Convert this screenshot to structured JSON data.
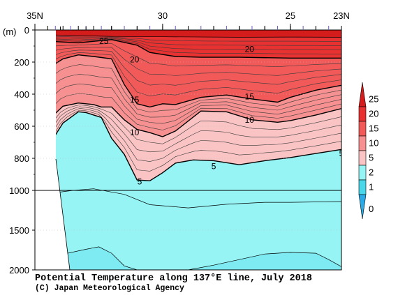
{
  "chart_data": {
    "type": "contour",
    "title": "Potential Temperature along 137°E line, July 2018",
    "credit": "(C) Japan Meteorological Agency",
    "ylabel": "(m)",
    "x_ticks": [
      "35N",
      "30",
      "25",
      "23N"
    ],
    "x_tick_lats": [
      35,
      30,
      25,
      23
    ],
    "xlim": [
      35,
      23
    ],
    "y_ticks": [
      "0",
      "200",
      "400",
      "600",
      "800",
      "1000",
      "1500",
      "2000"
    ],
    "y_tick_depths": [
      0,
      200,
      400,
      600,
      800,
      1000,
      1500,
      2000
    ],
    "ylim": [
      0,
      2000
    ],
    "y_scale_break_m": 1000,
    "station_lats": [
      34.5,
      34.2,
      33.9,
      33.6,
      33.3,
      33.0,
      32.7,
      32.4,
      32.0,
      31.5,
      31.0,
      30.5,
      30.0,
      29.5,
      29.0,
      28.5,
      28.0,
      27.5,
      27.0,
      26.5,
      26.0,
      25.5,
      25.0,
      24.5,
      24.0,
      23.5,
      23.0
    ],
    "colorbar": {
      "labels": [
        "25",
        "20",
        "15",
        "10",
        "5",
        "2",
        "1",
        "0"
      ],
      "bands": [
        {
          "lo": 25,
          "hi": 30,
          "color": "#d41c1c"
        },
        {
          "lo": 20,
          "hi": 25,
          "color": "#e83232"
        },
        {
          "lo": 15,
          "hi": 20,
          "color": "#f25a5a"
        },
        {
          "lo": 10,
          "hi": 15,
          "color": "#f79090"
        },
        {
          "lo": 5,
          "hi": 10,
          "color": "#fbc4c4"
        },
        {
          "lo": 2,
          "hi": 5,
          "color": "#96f4f4"
        },
        {
          "lo": 1,
          "hi": 2,
          "color": "#4ad7ea"
        },
        {
          "lo": 0,
          "hi": 1,
          "color": "#2aaae6"
        }
      ]
    },
    "isotherms": [
      {
        "value": 25,
        "label": "25",
        "bold": false,
        "points": [
          [
            34.5,
            30
          ],
          [
            33.3,
            35
          ],
          [
            32.0,
            40
          ],
          [
            30.0,
            42
          ],
          [
            27.0,
            45
          ],
          [
            25.0,
            44
          ],
          [
            23.0,
            45
          ]
        ]
      },
      {
        "value": 20,
        "label": "20",
        "bold": true,
        "points": [
          [
            34.5,
            70
          ],
          [
            33.3,
            80
          ],
          [
            32.0,
            60
          ],
          [
            31.0,
            95
          ],
          [
            30.5,
            140
          ],
          [
            29.5,
            165
          ],
          [
            28.5,
            170
          ],
          [
            27.0,
            170
          ],
          [
            25.0,
            175
          ],
          [
            23.0,
            175
          ]
        ]
      },
      {
        "value": 15,
        "label": "15",
        "bold": true,
        "points": [
          [
            34.5,
            240
          ],
          [
            33.9,
            180
          ],
          [
            33.3,
            155
          ],
          [
            32.7,
            165
          ],
          [
            32.0,
            180
          ],
          [
            31.5,
            340
          ],
          [
            31.0,
            460
          ],
          [
            30.5,
            480
          ],
          [
            30.0,
            460
          ],
          [
            29.5,
            465
          ],
          [
            28.5,
            420
          ],
          [
            27.5,
            405
          ],
          [
            26.5,
            430
          ],
          [
            25.5,
            450
          ],
          [
            25.0,
            420
          ],
          [
            24.0,
            375
          ],
          [
            23.0,
            345
          ]
        ]
      },
      {
        "value": 10,
        "label": "10",
        "bold": true,
        "points": [
          [
            34.5,
            600
          ],
          [
            34.2,
            520
          ],
          [
            33.9,
            475
          ],
          [
            33.3,
            455
          ],
          [
            32.7,
            465
          ],
          [
            32.4,
            480
          ],
          [
            32.0,
            480
          ],
          [
            31.5,
            560
          ],
          [
            31.0,
            620
          ],
          [
            30.5,
            640
          ],
          [
            30.0,
            665
          ],
          [
            29.5,
            630
          ],
          [
            28.5,
            505
          ],
          [
            27.5,
            510
          ],
          [
            26.5,
            560
          ],
          [
            25.5,
            575
          ],
          [
            25.0,
            565
          ],
          [
            24.0,
            530
          ],
          [
            23.0,
            490
          ]
        ]
      },
      {
        "value": 5,
        "label": "5",
        "bold": true,
        "points": [
          [
            34.5,
            810
          ],
          [
            34.2,
            655
          ],
          [
            33.9,
            580
          ],
          [
            33.6,
            545
          ],
          [
            33.3,
            510
          ],
          [
            33.0,
            515
          ],
          [
            32.7,
            530
          ],
          [
            32.4,
            545
          ],
          [
            32.0,
            675
          ],
          [
            31.5,
            775
          ],
          [
            31.0,
            935
          ],
          [
            30.5,
            940
          ],
          [
            30.0,
            890
          ],
          [
            29.5,
            830
          ],
          [
            28.8,
            810
          ],
          [
            28.0,
            815
          ],
          [
            27.0,
            840
          ],
          [
            26.0,
            815
          ],
          [
            25.0,
            795
          ],
          [
            24.0,
            770
          ],
          [
            23.0,
            745
          ]
        ]
      },
      {
        "value": 2,
        "label": "",
        "bold": false,
        "points": [
          [
            34.5,
            1040
          ],
          [
            33.5,
            1000
          ],
          [
            32.7,
            990
          ],
          [
            31.5,
            1050
          ],
          [
            30.5,
            1180
          ],
          [
            29.0,
            1220
          ],
          [
            27.5,
            1175
          ],
          [
            26.0,
            1150
          ],
          [
            25.0,
            1150
          ],
          [
            23.0,
            1140
          ]
        ]
      },
      {
        "value": 1.5,
        "label": "",
        "bold": false,
        "points": [
          [
            34.0,
            1810
          ],
          [
            33.0,
            1740
          ],
          [
            32.5,
            1710
          ],
          [
            32.0,
            1790
          ],
          [
            31.5,
            1950
          ],
          [
            31.0,
            2000
          ]
        ]
      },
      {
        "value": 1.5,
        "label": "",
        "bold": false,
        "points": [
          [
            29.0,
            2000
          ],
          [
            28.0,
            1940
          ],
          [
            27.0,
            1870
          ],
          [
            26.0,
            1800
          ],
          [
            25.0,
            1780
          ],
          [
            24.0,
            1790
          ],
          [
            23.5,
            1870
          ],
          [
            23.0,
            1960
          ]
        ]
      }
    ],
    "label_positions": [
      {
        "text": "25",
        "lat": 32.3,
        "depth": 70
      },
      {
        "text": "20",
        "lat": 31.1,
        "depth": 185
      },
      {
        "text": "20",
        "lat": 26.6,
        "depth": 120
      },
      {
        "text": "15",
        "lat": 31.1,
        "depth": 435
      },
      {
        "text": "15",
        "lat": 26.6,
        "depth": 415
      },
      {
        "text": "10",
        "lat": 31.1,
        "depth": 640
      },
      {
        "text": "10",
        "lat": 26.6,
        "depth": 560
      },
      {
        "text": "5",
        "lat": 30.9,
        "depth": 945
      },
      {
        "text": "5",
        "lat": 28.0,
        "depth": 850
      },
      {
        "text": "5",
        "lat": 23.0,
        "depth": 770
      }
    ],
    "grid": true,
    "legend_position": "right"
  }
}
